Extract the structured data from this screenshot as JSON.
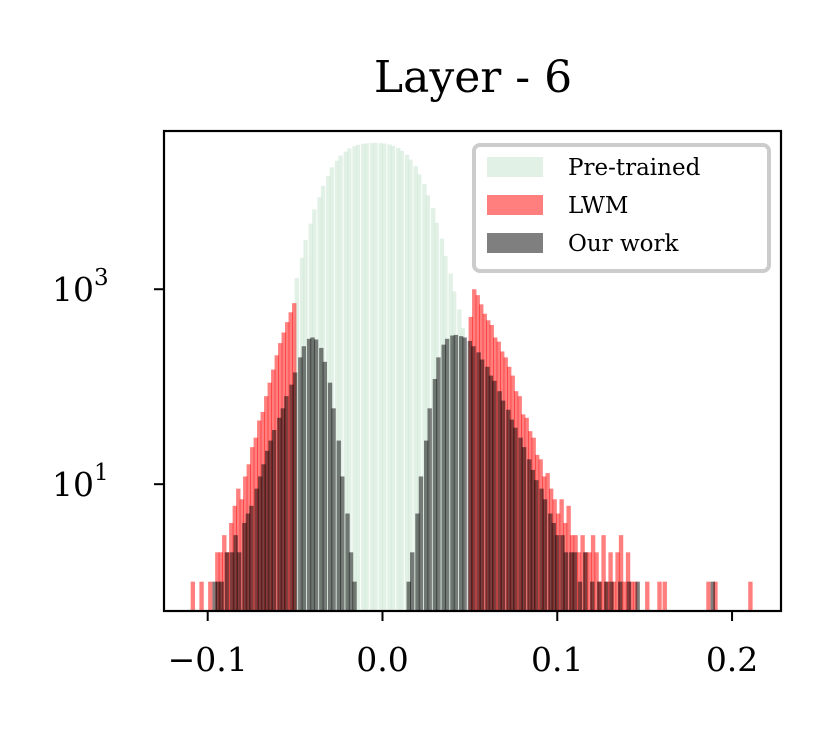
{
  "chart_data": {
    "type": "bar",
    "title": "Layer - 6",
    "xlabel": "",
    "ylabel": "",
    "yscale": "log",
    "xlim": [
      -0.125,
      0.228
    ],
    "ylim": [
      0.5,
      42000
    ],
    "xticks": [
      -0.1,
      0.0,
      0.1,
      0.2
    ],
    "xtick_labels": [
      "−0.1",
      "0.0",
      "0.1",
      "0.2"
    ],
    "yticks": [
      10,
      1000
    ],
    "ytick_labels": [
      {
        "base": "10",
        "exp": "1"
      },
      {
        "base": "10",
        "exp": "3"
      }
    ],
    "grid": false,
    "legend": {
      "position": "top-right",
      "entries": [
        "Pre-trained",
        "LWM",
        "Our work"
      ]
    },
    "bin_width": 0.0025,
    "series": [
      {
        "name": "Pre-trained",
        "color": "#cfe8d5",
        "opacity": 0.6,
        "bins": [
          [
            -0.049,
            1300
          ],
          [
            -0.046,
            2100
          ],
          [
            -0.044,
            3200
          ],
          [
            -0.041,
            4700
          ],
          [
            -0.039,
            6600
          ],
          [
            -0.036,
            8800
          ],
          [
            -0.034,
            11500
          ],
          [
            -0.031,
            14500
          ],
          [
            -0.029,
            17800
          ],
          [
            -0.026,
            20800
          ],
          [
            -0.024,
            23500
          ],
          [
            -0.021,
            25800
          ],
          [
            -0.019,
            27800
          ],
          [
            -0.016,
            29300
          ],
          [
            -0.014,
            30300
          ],
          [
            -0.011,
            31000
          ],
          [
            -0.009,
            31400
          ],
          [
            -0.006,
            31600
          ],
          [
            -0.004,
            31700
          ],
          [
            -0.001,
            31500
          ],
          [
            0.001,
            31200
          ],
          [
            0.004,
            30600
          ],
          [
            0.006,
            29600
          ],
          [
            0.009,
            28200
          ],
          [
            0.011,
            26300
          ],
          [
            0.014,
            24000
          ],
          [
            0.016,
            21300
          ],
          [
            0.019,
            18300
          ],
          [
            0.021,
            15100
          ],
          [
            0.024,
            12000
          ],
          [
            0.026,
            9200
          ],
          [
            0.029,
            6800
          ],
          [
            0.031,
            4800
          ],
          [
            0.034,
            3300
          ],
          [
            0.036,
            2200
          ],
          [
            0.039,
            1450
          ],
          [
            0.041,
            950
          ],
          [
            0.044,
            620
          ],
          [
            0.046,
            400
          ]
        ]
      },
      {
        "name": "LWM",
        "color": "#ff0000",
        "opacity": 0.5,
        "bins": [
          [
            -0.1085,
            1
          ],
          [
            -0.1035,
            1
          ],
          [
            -0.0985,
            1
          ],
          [
            -0.0945,
            2
          ],
          [
            -0.0925,
            2
          ],
          [
            -0.0905,
            3
          ],
          [
            -0.0885,
            2
          ],
          [
            -0.0865,
            4
          ],
          [
            -0.0845,
            6
          ],
          [
            -0.0825,
            9
          ],
          [
            -0.0805,
            7
          ],
          [
            -0.0785,
            12
          ],
          [
            -0.0765,
            16
          ],
          [
            -0.0745,
            24
          ],
          [
            -0.0725,
            30
          ],
          [
            -0.0705,
            45
          ],
          [
            -0.0685,
            55
          ],
          [
            -0.0665,
            80
          ],
          [
            -0.0645,
            110
          ],
          [
            -0.0625,
            150
          ],
          [
            -0.0605,
            210
          ],
          [
            -0.0585,
            280
          ],
          [
            -0.0565,
            360
          ],
          [
            -0.0545,
            460
          ],
          [
            -0.0525,
            580
          ],
          [
            -0.0505,
            720
          ],
          [
            0.0505,
            520
          ],
          [
            0.0525,
            1000
          ],
          [
            0.0545,
            870
          ],
          [
            0.0565,
            700
          ],
          [
            0.0585,
            560
          ],
          [
            0.0605,
            480
          ],
          [
            0.0625,
            430
          ],
          [
            0.0645,
            320
          ],
          [
            0.0665,
            290
          ],
          [
            0.0685,
            230
          ],
          [
            0.0705,
            200
          ],
          [
            0.0725,
            160
          ],
          [
            0.0745,
            130
          ],
          [
            0.0765,
            90
          ],
          [
            0.0785,
            80
          ],
          [
            0.0805,
            52
          ],
          [
            0.0825,
            48
          ],
          [
            0.0845,
            35
          ],
          [
            0.0865,
            30
          ],
          [
            0.0885,
            20
          ],
          [
            0.0905,
            18
          ],
          [
            0.0925,
            12
          ],
          [
            0.0945,
            13
          ],
          [
            0.0965,
            9
          ],
          [
            0.0985,
            7
          ],
          [
            0.1005,
            5
          ],
          [
            0.1025,
            7
          ],
          [
            0.1045,
            4
          ],
          [
            0.1065,
            6
          ],
          [
            0.1085,
            3
          ],
          [
            0.1105,
            3
          ],
          [
            0.1125,
            2
          ],
          [
            0.1145,
            3
          ],
          [
            0.1165,
            2
          ],
          [
            0.1185,
            2
          ],
          [
            0.1205,
            3
          ],
          [
            0.1225,
            2
          ],
          [
            0.1245,
            1
          ],
          [
            0.1265,
            3
          ],
          [
            0.1285,
            1
          ],
          [
            0.1305,
            2
          ],
          [
            0.1325,
            1
          ],
          [
            0.1345,
            2
          ],
          [
            0.1365,
            3
          ],
          [
            0.1385,
            1
          ],
          [
            0.1405,
            2
          ],
          [
            0.1425,
            1
          ],
          [
            0.1445,
            1
          ],
          [
            0.1515,
            1
          ],
          [
            0.1585,
            1
          ],
          [
            0.1615,
            1
          ],
          [
            0.1865,
            1
          ],
          [
            0.1905,
            1
          ],
          [
            0.2105,
            1
          ]
        ]
      },
      {
        "name": "Our work",
        "color": "#000000",
        "opacity": 0.5,
        "bins": [
          [
            -0.096,
            1
          ],
          [
            -0.094,
            1
          ],
          [
            -0.092,
            1
          ],
          [
            -0.089,
            2
          ],
          [
            -0.086,
            2
          ],
          [
            -0.084,
            3
          ],
          [
            -0.082,
            2
          ],
          [
            -0.079,
            4
          ],
          [
            -0.077,
            5
          ],
          [
            -0.075,
            6
          ],
          [
            -0.072,
            9
          ],
          [
            -0.07,
            12
          ],
          [
            -0.068,
            16
          ],
          [
            -0.066,
            22
          ],
          [
            -0.064,
            28
          ],
          [
            -0.062,
            36
          ],
          [
            -0.059,
            48
          ],
          [
            -0.057,
            60
          ],
          [
            -0.055,
            80
          ],
          [
            -0.052,
            105
          ],
          [
            -0.05,
            140
          ],
          [
            -0.047,
            200
          ],
          [
            -0.045,
            260
          ],
          [
            -0.042,
            310
          ],
          [
            -0.04,
            320
          ],
          [
            -0.038,
            305
          ],
          [
            -0.035,
            250
          ],
          [
            -0.033,
            180
          ],
          [
            -0.03,
            110
          ],
          [
            -0.028,
            60
          ],
          [
            -0.025,
            28
          ],
          [
            -0.023,
            12
          ],
          [
            -0.02,
            5
          ],
          [
            -0.018,
            2
          ],
          [
            -0.016,
            1
          ],
          [
            0.015,
            1
          ],
          [
            0.017,
            2
          ],
          [
            0.02,
            5
          ],
          [
            0.022,
            12
          ],
          [
            0.025,
            28
          ],
          [
            0.027,
            60
          ],
          [
            0.03,
            120
          ],
          [
            0.032,
            200
          ],
          [
            0.035,
            270
          ],
          [
            0.037,
            310
          ],
          [
            0.04,
            335
          ],
          [
            0.042,
            340
          ],
          [
            0.045,
            330
          ],
          [
            0.047,
            320
          ],
          [
            0.05,
            295
          ],
          [
            0.052,
            260
          ],
          [
            0.055,
            225
          ],
          [
            0.057,
            190
          ],
          [
            0.06,
            160
          ],
          [
            0.062,
            130
          ],
          [
            0.064,
            115
          ],
          [
            0.067,
            90
          ],
          [
            0.069,
            72
          ],
          [
            0.072,
            58
          ],
          [
            0.074,
            46
          ],
          [
            0.076,
            38
          ],
          [
            0.079,
            30
          ],
          [
            0.081,
            24
          ],
          [
            0.084,
            18
          ],
          [
            0.086,
            14
          ],
          [
            0.088,
            11
          ],
          [
            0.091,
            9
          ],
          [
            0.093,
            7
          ],
          [
            0.096,
            5
          ],
          [
            0.098,
            4
          ],
          [
            0.1,
            3
          ],
          [
            0.103,
            3
          ],
          [
            0.105,
            2
          ],
          [
            0.108,
            2
          ],
          [
            0.11,
            2
          ],
          [
            0.113,
            1
          ],
          [
            0.116,
            2
          ],
          [
            0.12,
            1
          ],
          [
            0.124,
            1
          ],
          [
            0.128,
            1
          ],
          [
            0.131,
            1
          ],
          [
            0.136,
            1
          ],
          [
            0.141,
            1
          ],
          [
            0.146,
            1
          ],
          [
            0.189,
            1
          ]
        ]
      }
    ]
  }
}
